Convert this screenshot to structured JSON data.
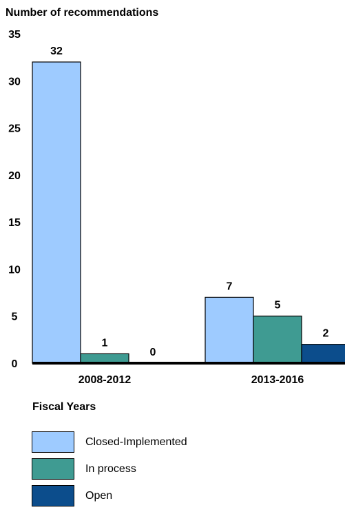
{
  "chart_data": {
    "type": "bar",
    "title": "",
    "ylabel": "Number of recommendations",
    "xlabel": "Fiscal Years",
    "categories": [
      "2008-2012",
      "2013-2016"
    ],
    "ylim": [
      0,
      35
    ],
    "yticks": [
      0,
      5,
      10,
      15,
      20,
      25,
      30,
      35
    ],
    "grid": false,
    "legend_position": "bottom",
    "series": [
      {
        "name": "Closed-Implemented",
        "color": "#9ecbff",
        "values": [
          32,
          7
        ]
      },
      {
        "name": "In process",
        "color": "#3f9b92",
        "values": [
          1,
          5
        ]
      },
      {
        "name": "Open",
        "color": "#0c4d8c",
        "values": [
          0,
          2
        ]
      }
    ]
  }
}
